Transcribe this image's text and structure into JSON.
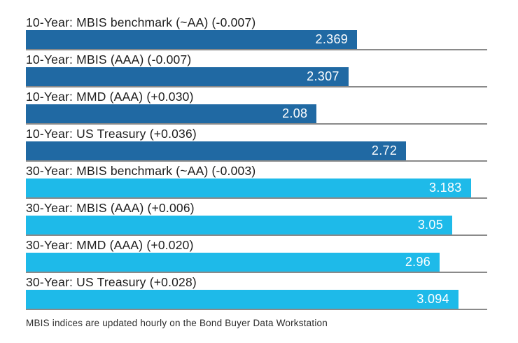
{
  "chart_data": {
    "type": "bar",
    "orientation": "horizontal",
    "title": "",
    "xlabel": "",
    "ylabel": "",
    "xlim": [
      0,
      3.3
    ],
    "grid": false,
    "legend": "none",
    "colors": {
      "10-year": "#2069a3",
      "30-year": "#1ebae9"
    },
    "separator_color": "#8a8a8a",
    "bars": [
      {
        "label": "10-Year: MBIS benchmark (~AA) (-0.007)",
        "value": 2.369,
        "display_value": "2.369",
        "group": "10-year"
      },
      {
        "label": "10-Year: MBIS (AAA) (-0.007)",
        "value": 2.307,
        "display_value": "2.307",
        "group": "10-year"
      },
      {
        "label": "10-Year: MMD (AAA) (+0.030)",
        "value": 2.08,
        "display_value": "2.08",
        "group": "10-year"
      },
      {
        "label": "10-Year: US Treasury (+0.036)",
        "value": 2.72,
        "display_value": "2.72",
        "group": "10-year"
      },
      {
        "label": "30-Year: MBIS benchmark (~AA) (-0.003)",
        "value": 3.183,
        "display_value": "3.183",
        "group": "30-year"
      },
      {
        "label": "30-Year: MBIS (AAA) (+0.006)",
        "value": 3.05,
        "display_value": "3.05",
        "group": "30-year"
      },
      {
        "label": "30-Year: MMD (AAA) (+0.020)",
        "value": 2.96,
        "display_value": "2.96",
        "group": "30-year"
      },
      {
        "label": "30-Year: US Treasury (+0.028)",
        "value": 3.094,
        "display_value": "3.094",
        "group": "30-year"
      }
    ]
  },
  "footer": {
    "note": "MBIS indices are updated hourly on the Bond Buyer Data Workstation"
  }
}
